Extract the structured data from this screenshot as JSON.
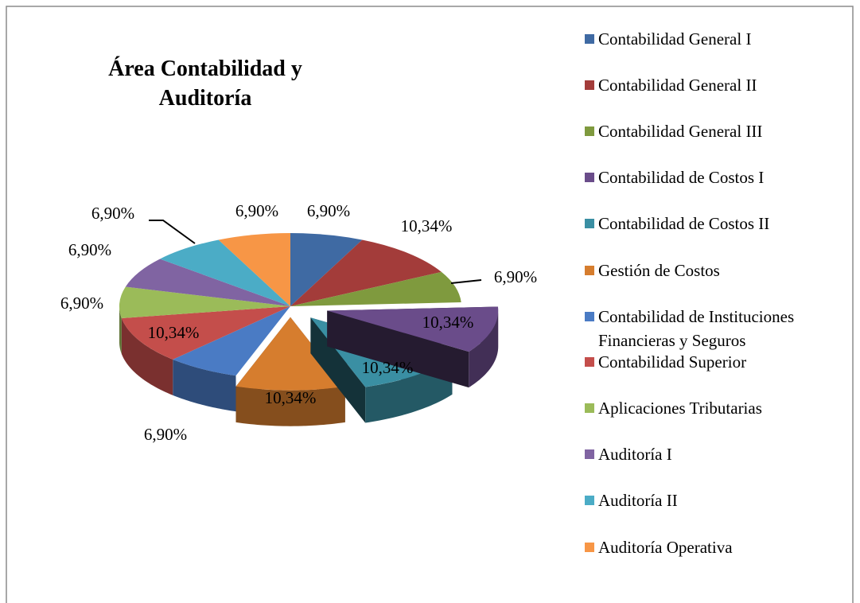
{
  "chart_data": {
    "type": "pie3d",
    "title": "Área Contabilidad y Auditoría",
    "categories": [
      "Contabilidad General I",
      "Contabilidad General II",
      "Contabilidad General III",
      "Contabilidad de Costos I",
      "Contabilidad de Costos II",
      "Gestión de Costos",
      "Contabilidad de Instituciones Financieras y Seguros",
      "Contabilidad Superior",
      "Aplicaciones Tributarias",
      "Auditoría I",
      "Auditoría II",
      "Auditoría Operativa"
    ],
    "values": [
      6.9,
      10.34,
      6.9,
      10.34,
      10.34,
      10.34,
      6.9,
      10.34,
      6.9,
      6.9,
      6.9,
      6.9
    ],
    "value_labels": [
      "6,90%",
      "10,34%",
      "6,90%",
      "10,34%",
      "10,34%",
      "10,34%",
      "6,90%",
      "10,34%",
      "6,90%",
      "6,90%",
      "6,90%",
      "6,90%"
    ],
    "colors": [
      "#3f6aa3",
      "#a33c3a",
      "#7f9a3e",
      "#6a4c8a",
      "#3a8fa3",
      "#d67d2e",
      "#4a7bc4",
      "#c44e4b",
      "#9bbb59",
      "#8064a2",
      "#4bacc6",
      "#f79646"
    ],
    "legend": "right"
  }
}
